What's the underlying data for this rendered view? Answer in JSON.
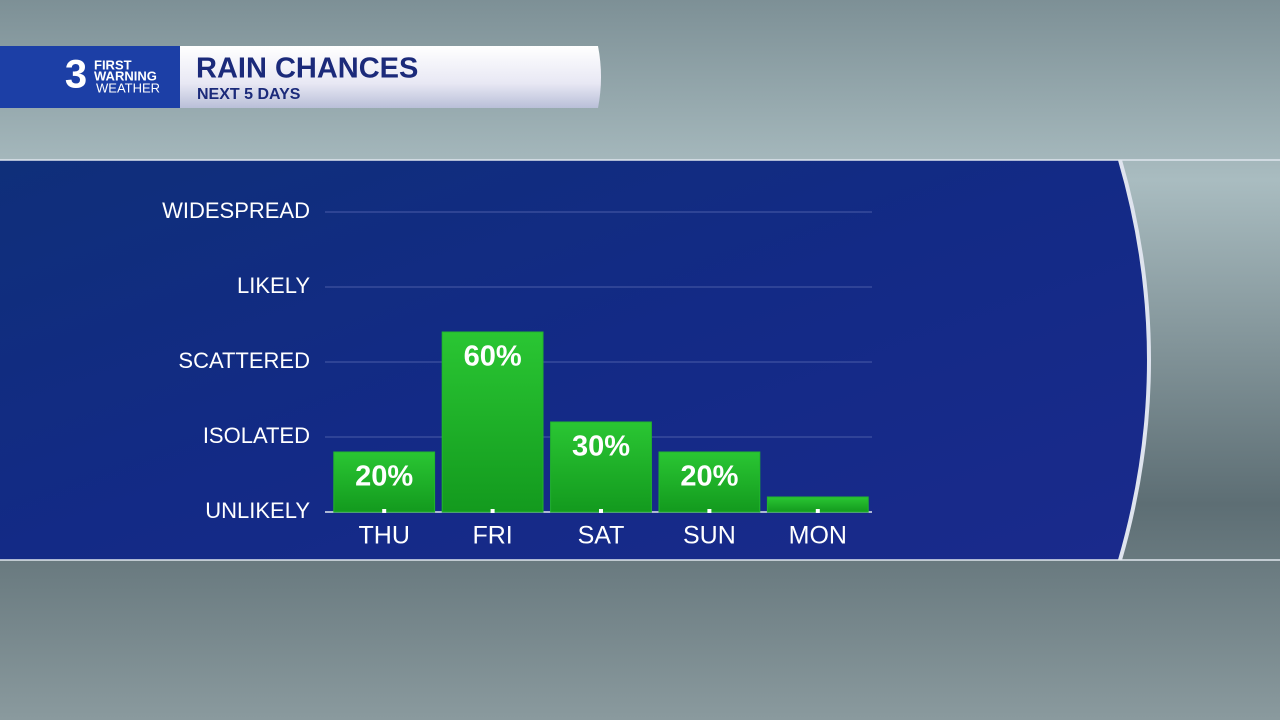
{
  "logo": {
    "number": "3",
    "line1": "FIRST",
    "line2": "WARNING",
    "line3": "WEATHER"
  },
  "chart_data": {
    "type": "bar",
    "title": "RAIN CHANCES",
    "subtitle": "NEXT 5 DAYS",
    "categories": [
      "THU",
      "FRI",
      "SAT",
      "SUN",
      "MON"
    ],
    "values": [
      20,
      60,
      30,
      20,
      5
    ],
    "value_labels": [
      "20%",
      "60%",
      "30%",
      "20%",
      null
    ],
    "color": "#22b52c",
    "ylim": [
      0,
      100
    ],
    "yticks": [
      {
        "value": 0,
        "label": "UNLIKELY"
      },
      {
        "value": 25,
        "label": "ISOLATED"
      },
      {
        "value": 50,
        "label": "SCATTERED"
      },
      {
        "value": 75,
        "label": "LIKELY"
      },
      {
        "value": 100,
        "label": "WIDESPREAD"
      }
    ],
    "grid": true
  }
}
